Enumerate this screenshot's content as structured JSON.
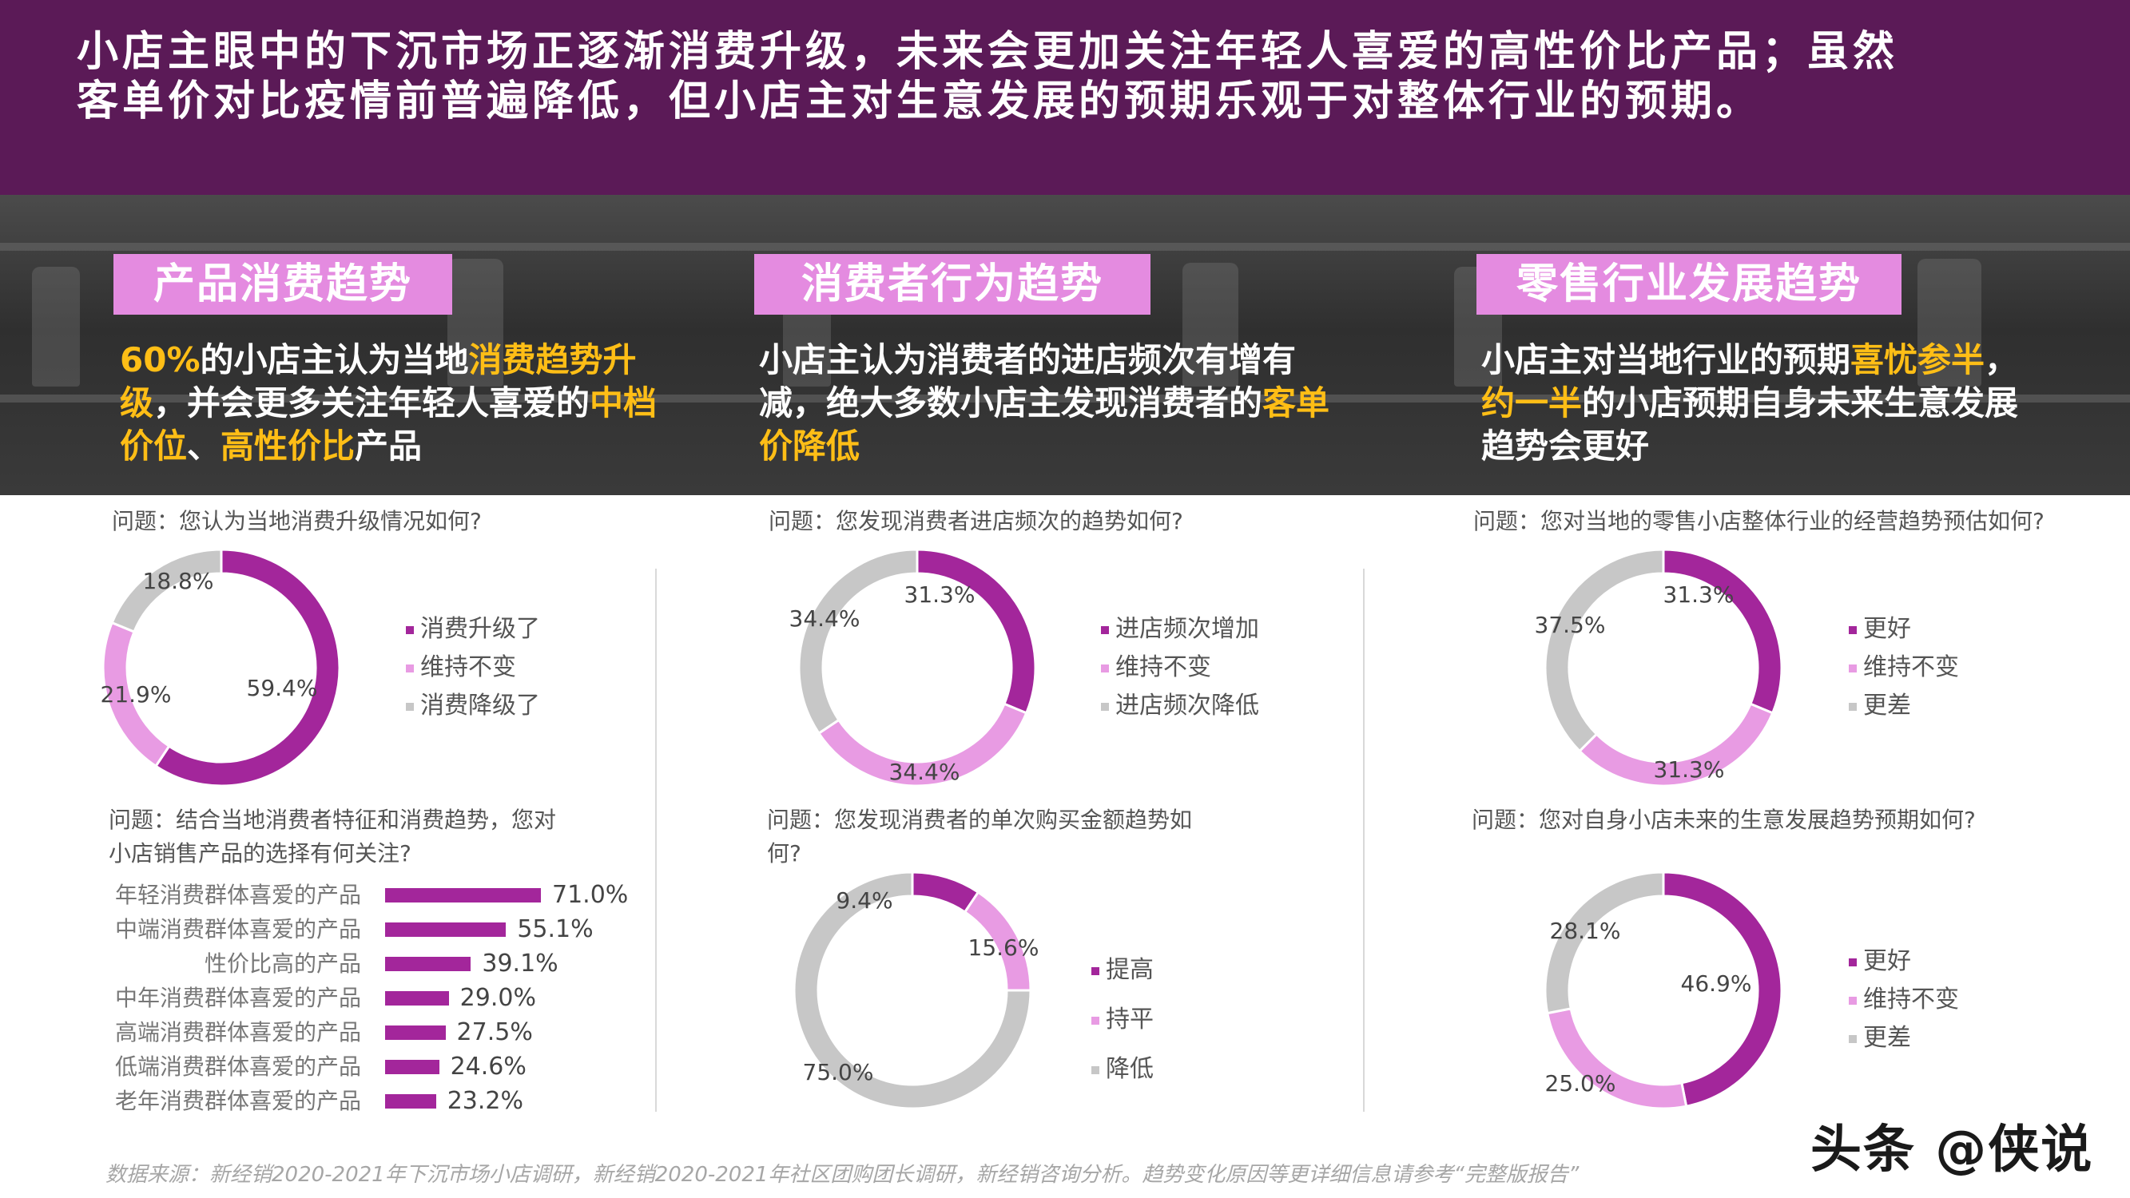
{
  "header": {
    "line1": "小店主眼中的下沉市场正逐渐消费升级，未来会更加关注年轻人喜爱的高性价比产品；虽然",
    "line2": "客单价对比疫情前普遍降低，但小店主对生意发展的预期乐观于对整体行业的预期。"
  },
  "sections": [
    {
      "title": "产品消费趋势",
      "summary": [
        {
          "t": "60%",
          "hl": true
        },
        {
          "t": "的小店主认为当地",
          "hl": false
        },
        {
          "t": "消费趋势升级",
          "hl": true
        },
        {
          "t": "，并会更多关注年轻人喜爱的",
          "hl": false
        },
        {
          "t": "中档价位",
          "hl": true
        },
        {
          "t": "、",
          "hl": false
        },
        {
          "t": "高性价比",
          "hl": true
        },
        {
          "t": "产品",
          "hl": false
        }
      ]
    },
    {
      "title": "消费者行为趋势",
      "summary": [
        {
          "t": "小店主认为消费者的进店频次有增有减，绝大多数小店主发现消费者的",
          "hl": false
        },
        {
          "t": "客单价降低",
          "hl": true
        }
      ]
    },
    {
      "title": "零售行业发展趋势",
      "summary": [
        {
          "t": "小店主对当地行业的预期",
          "hl": false
        },
        {
          "t": "喜忧参半",
          "hl": true
        },
        {
          "t": "，",
          "hl": false
        },
        {
          "t": "约一半",
          "hl": true
        },
        {
          "t": "的小店预期自身未来生意发展趋势会更好",
          "hl": false
        }
      ]
    }
  ],
  "questions": {
    "q1": "问题：您认为当地消费升级情况如何?",
    "q2a": "问题：结合当地消费者特征和消费趋势，您对",
    "q2b": "小店销售产品的选择有何关注?",
    "q3": "问题：您发现消费者进店频次的趋势如何?",
    "q4a": "问题：您发现消费者的单次购买金额趋势如",
    "q4b": "何?",
    "q5": "问题：您对当地的零售小店整体行业的经营趋势预估如何?",
    "q6": "问题：您对自身小店未来的生意发展趋势预期如何?"
  },
  "colors": {
    "purple": "#a3269b",
    "pink": "#e89be3",
    "gray": "#c7c7c7",
    "highlight": "#ffbe16",
    "header": "#5b1a57"
  },
  "chart_data": [
    {
      "id": "consumption-upgrade",
      "type": "pie",
      "donut": true,
      "series": [
        {
          "name": "消费升级了",
          "value": 59.4,
          "label": "59.4%"
        },
        {
          "name": "维持不变",
          "value": 21.9,
          "label": "21.9%"
        },
        {
          "name": "消费降级了",
          "value": 18.8,
          "label": "18.8%"
        }
      ]
    },
    {
      "id": "product-focus",
      "type": "bar",
      "orientation": "horizontal",
      "categories": [
        "年轻消费群体喜爱的产品",
        "中端消费群体喜爱的产品",
        "性价比高的产品",
        "中年消费群体喜爱的产品",
        "高端消费群体喜爱的产品",
        "低端消费群体喜爱的产品",
        "老年消费群体喜爱的产品"
      ],
      "values": [
        71.0,
        55.1,
        39.1,
        29.0,
        27.5,
        24.6,
        23.2
      ],
      "labels": [
        "71.0%",
        "55.1%",
        "39.1%",
        "29.0%",
        "27.5%",
        "24.6%",
        "23.2%"
      ],
      "xlim": [
        0,
        80
      ]
    },
    {
      "id": "visit-frequency",
      "type": "pie",
      "donut": true,
      "series": [
        {
          "name": "进店频次增加",
          "value": 31.3,
          "label": "31.3%"
        },
        {
          "name": "维持不变",
          "value": 34.4,
          "label": "34.4%"
        },
        {
          "name": "进店频次降低",
          "value": 34.4,
          "label": "34.4%"
        }
      ]
    },
    {
      "id": "purchase-amount",
      "type": "pie",
      "donut": true,
      "series": [
        {
          "name": "提高",
          "value": 9.4,
          "label": "9.4%"
        },
        {
          "name": "持平",
          "value": 15.6,
          "label": "15.6%"
        },
        {
          "name": "降低",
          "value": 75.0,
          "label": "75.0%"
        }
      ]
    },
    {
      "id": "industry-outlook",
      "type": "pie",
      "donut": true,
      "series": [
        {
          "name": "更好",
          "value": 31.3,
          "label": "31.3%"
        },
        {
          "name": "维持不变",
          "value": 31.3,
          "label": "31.3%"
        },
        {
          "name": "更差",
          "value": 37.5,
          "label": "37.5%"
        }
      ]
    },
    {
      "id": "own-store-outlook",
      "type": "pie",
      "donut": true,
      "series": [
        {
          "name": "更好",
          "value": 46.9,
          "label": "46.9%"
        },
        {
          "name": "维持不变",
          "value": 25.0,
          "label": "25.0%"
        },
        {
          "name": "更差",
          "value": 28.1,
          "label": "28.1%"
        }
      ]
    }
  ],
  "footer": "数据来源：新经销2020-2021年下沉市场小店调研，新经销2020-2021年社区团购团长调研，新经销咨询分析。趋势变化原因等更详细信息请参考“完整版报告”",
  "watermark": "头条 @侠说"
}
